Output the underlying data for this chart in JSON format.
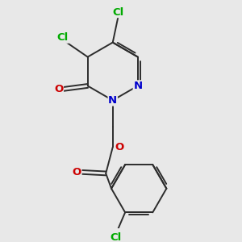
{
  "bg_color": "#e8e8e8",
  "bond_color": "#2c2c2c",
  "N_color": "#0000cc",
  "O_color": "#cc0000",
  "Cl_color": "#00aa00",
  "line_width": 1.4,
  "dbo": 0.032,
  "figsize": [
    3.0,
    3.0
  ],
  "dpi": 100,
  "xlim": [
    0.15,
    2.85
  ],
  "ylim": [
    0.1,
    3.4
  ]
}
